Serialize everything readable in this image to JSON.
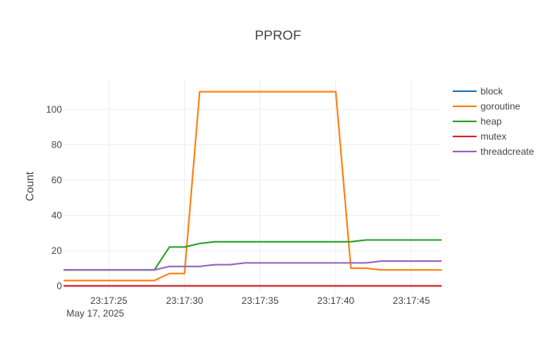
{
  "chart_data": {
    "type": "line",
    "title": "PPROF",
    "ylabel": "Count",
    "xlabel": "",
    "x_date_label": "May 17, 2025",
    "x_unit": "time (HH:MM:SS), May 17, 2025",
    "x_range": [
      "23:17:22",
      "23:17:47"
    ],
    "x_ticks": [
      "23:17:25",
      "23:17:30",
      "23:17:35",
      "23:17:40",
      "23:17:45"
    ],
    "y_range": [
      -3,
      117
    ],
    "y_ticks": [
      0,
      20,
      40,
      60,
      80,
      100
    ],
    "grid": true,
    "legend_position": "top-right",
    "x": [
      "23:17:22",
      "23:17:23",
      "23:17:24",
      "23:17:25",
      "23:17:26",
      "23:17:27",
      "23:17:28",
      "23:17:29",
      "23:17:30",
      "23:17:31",
      "23:17:32",
      "23:17:33",
      "23:17:34",
      "23:17:35",
      "23:17:36",
      "23:17:37",
      "23:17:38",
      "23:17:39",
      "23:17:40",
      "23:17:41",
      "23:17:42",
      "23:17:43",
      "23:17:44",
      "23:17:45",
      "23:17:46",
      "23:17:47"
    ],
    "series": [
      {
        "name": "block",
        "color": "#1f77b4",
        "values": [
          0,
          0,
          0,
          0,
          0,
          0,
          0,
          0,
          0,
          0,
          0,
          0,
          0,
          0,
          0,
          0,
          0,
          0,
          0,
          0,
          0,
          0,
          0,
          0,
          0,
          0
        ]
      },
      {
        "name": "goroutine",
        "color": "#ff7f0e",
        "values": [
          3,
          3,
          3,
          3,
          3,
          3,
          3,
          7,
          7,
          110,
          110,
          110,
          110,
          110,
          110,
          110,
          110,
          110,
          110,
          10,
          10,
          9,
          9,
          9,
          9,
          9
        ]
      },
      {
        "name": "heap",
        "color": "#2ca02c",
        "values": [
          9,
          9,
          9,
          9,
          9,
          9,
          9,
          22,
          22,
          24,
          25,
          25,
          25,
          25,
          25,
          25,
          25,
          25,
          25,
          25,
          26,
          26,
          26,
          26,
          26,
          26
        ]
      },
      {
        "name": "mutex",
        "color": "#d62728",
        "values": [
          0,
          0,
          0,
          0,
          0,
          0,
          0,
          0,
          0,
          0,
          0,
          0,
          0,
          0,
          0,
          0,
          0,
          0,
          0,
          0,
          0,
          0,
          0,
          0,
          0,
          0
        ]
      },
      {
        "name": "threadcreate",
        "color": "#9467bd",
        "values": [
          9,
          9,
          9,
          9,
          9,
          9,
          9,
          11,
          11,
          11,
          12,
          12,
          13,
          13,
          13,
          13,
          13,
          13,
          13,
          13,
          13,
          14,
          14,
          14,
          14,
          14
        ]
      }
    ]
  }
}
